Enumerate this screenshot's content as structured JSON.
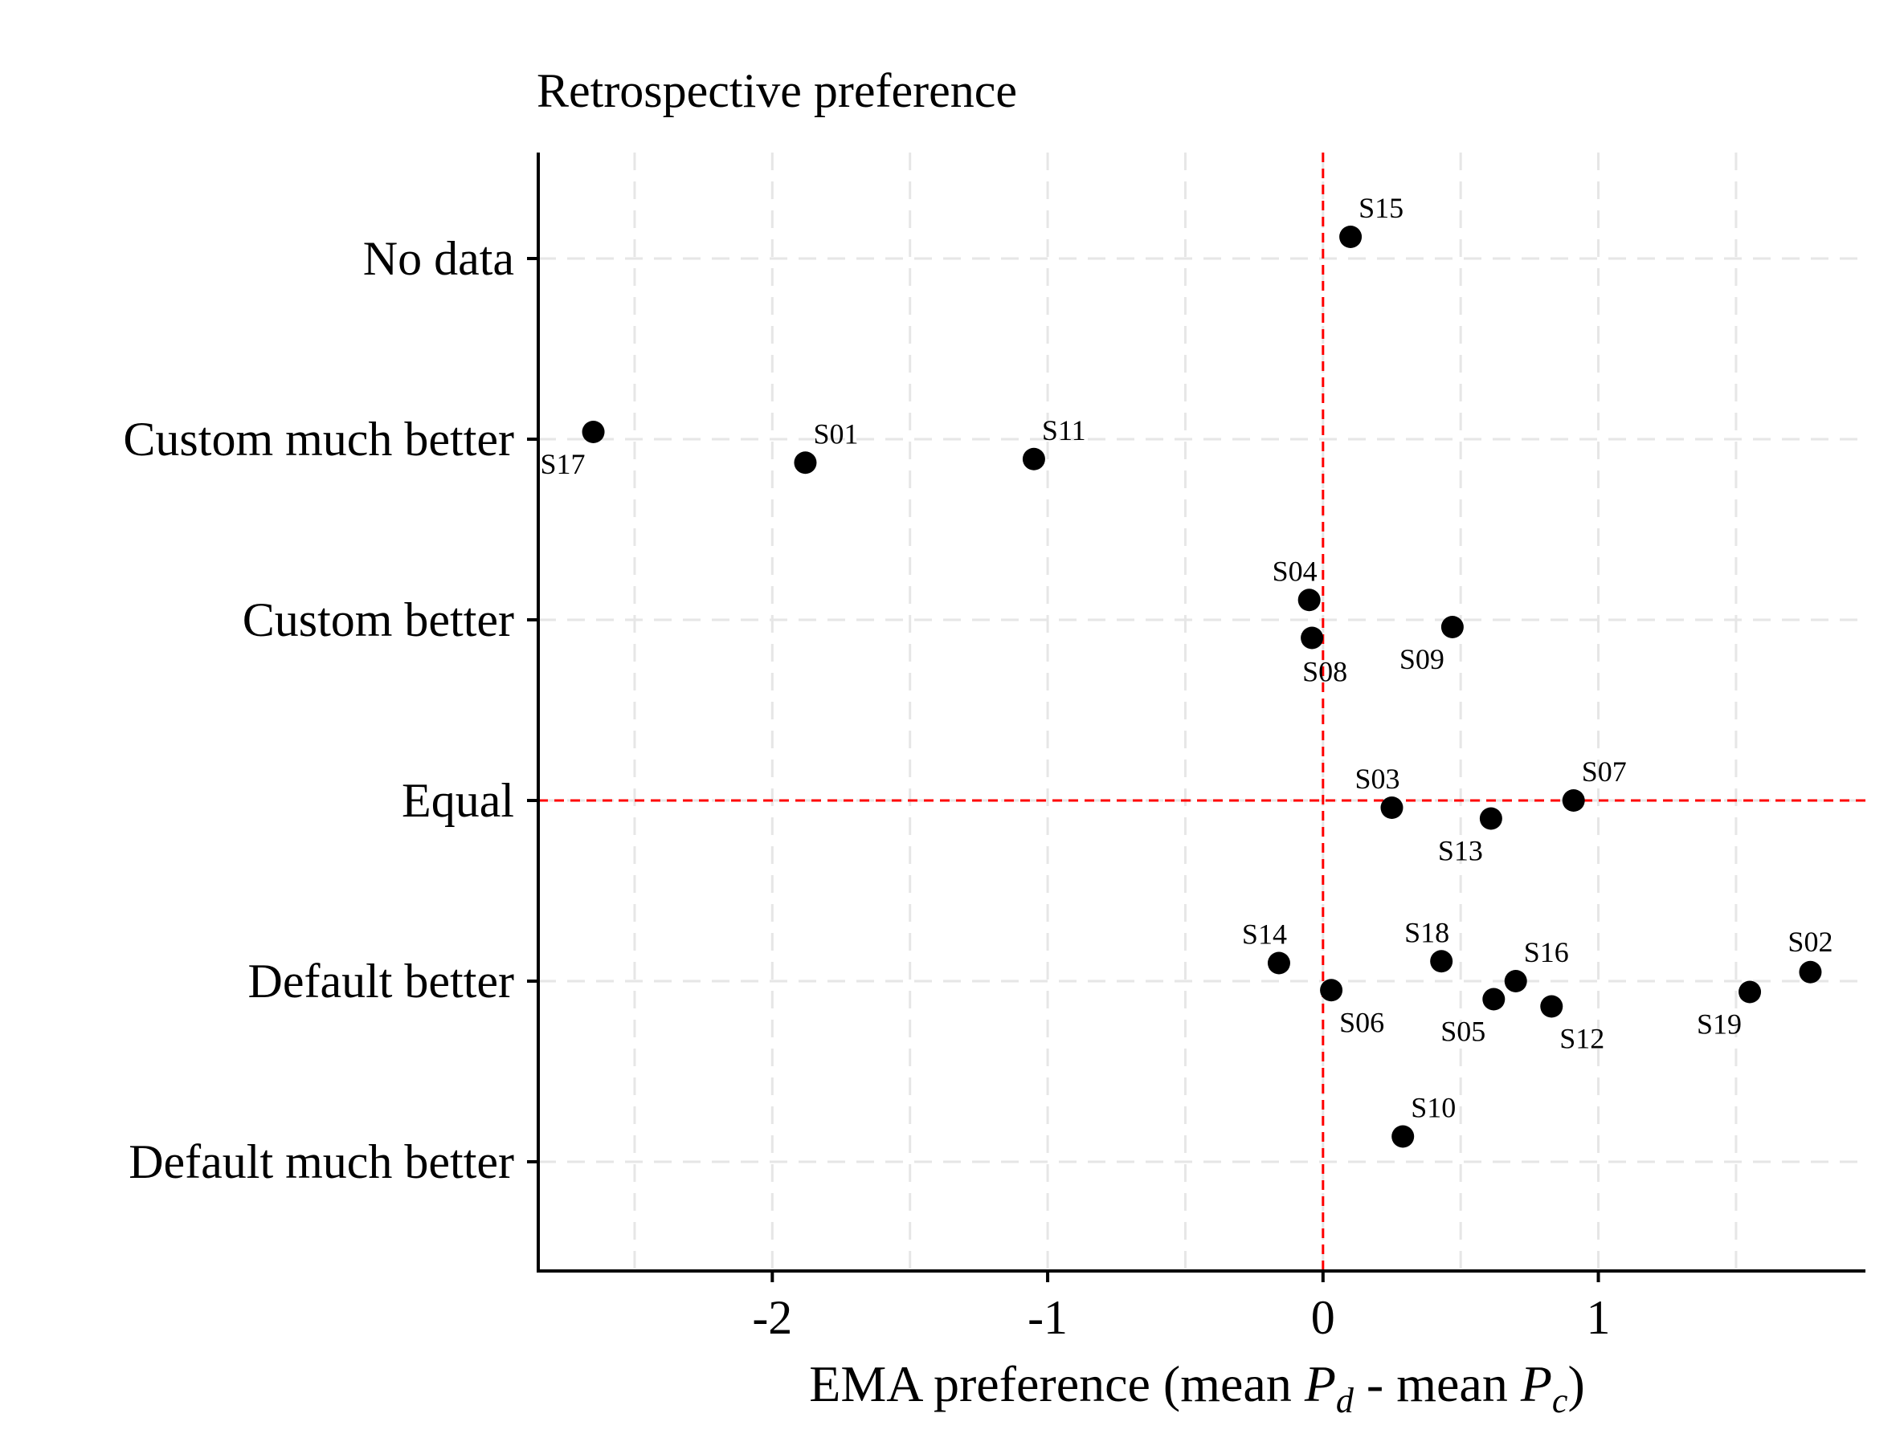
{
  "chart_data": {
    "type": "scatter",
    "title": "Retrospective preference",
    "xlabel": {
      "prefix": "EMA preference (mean ",
      "p1": "P",
      "p1_sub": "d",
      "middle": " - mean ",
      "p2": "P",
      "p2_sub": "c",
      "suffix": ")"
    },
    "ylabel": "",
    "categories": [
      "Default much better",
      "Default better",
      "Equal",
      "Custom better",
      "Custom much better",
      "No data"
    ],
    "xlim": [
      -2.85,
      1.97
    ],
    "x_ticks": [
      -2,
      -1,
      0,
      1
    ],
    "x_tick_labels": [
      "-2",
      "-1",
      "0",
      "1"
    ],
    "x_minor_ticks": [
      -2.5,
      -1.5,
      -0.5,
      0.5,
      1.5
    ],
    "grid": "dashed",
    "reference_lines": {
      "x": 0,
      "y": "Equal",
      "color": "#ff0000"
    },
    "points": [
      {
        "label": "S15",
        "x": 0.1,
        "y_offset": 0.12,
        "category": "No data",
        "label_pos": "above-right"
      },
      {
        "label": "S17",
        "x": -2.65,
        "y_offset": 0.04,
        "category": "Custom much better",
        "label_pos": "below-left"
      },
      {
        "label": "S01",
        "x": -1.88,
        "y_offset": -0.13,
        "category": "Custom much better",
        "label_pos": "above-right"
      },
      {
        "label": "S11",
        "x": -1.05,
        "y_offset": -0.11,
        "category": "Custom much better",
        "label_pos": "above-right"
      },
      {
        "label": "S04",
        "x": -0.05,
        "y_offset": 0.11,
        "category": "Custom better",
        "label_pos": "above-left"
      },
      {
        "label": "S08",
        "x": -0.04,
        "y_offset": -0.1,
        "category": "Custom better",
        "label_pos": "below"
      },
      {
        "label": "S09",
        "x": 0.47,
        "y_offset": -0.04,
        "category": "Custom better",
        "label_pos": "below-left"
      },
      {
        "label": "S03",
        "x": 0.25,
        "y_offset": -0.04,
        "category": "Equal",
        "label_pos": "above-left"
      },
      {
        "label": "S13",
        "x": 0.61,
        "y_offset": -0.1,
        "category": "Equal",
        "label_pos": "below-left"
      },
      {
        "label": "S07",
        "x": 0.91,
        "y_offset": 0.0,
        "category": "Equal",
        "label_pos": "above-right"
      },
      {
        "label": "S14",
        "x": -0.16,
        "y_offset": 0.1,
        "category": "Default better",
        "label_pos": "above-left"
      },
      {
        "label": "S06",
        "x": 0.03,
        "y_offset": -0.05,
        "category": "Default better",
        "label_pos": "below-right"
      },
      {
        "label": "S18",
        "x": 0.43,
        "y_offset": 0.11,
        "category": "Default better",
        "label_pos": "above-left"
      },
      {
        "label": "S05",
        "x": 0.62,
        "y_offset": -0.1,
        "category": "Default better",
        "label_pos": "below-left"
      },
      {
        "label": "S16",
        "x": 0.7,
        "y_offset": 0.0,
        "category": "Default better",
        "label_pos": "above-right"
      },
      {
        "label": "S12",
        "x": 0.83,
        "y_offset": -0.14,
        "category": "Default better",
        "label_pos": "below-right"
      },
      {
        "label": "S19",
        "x": 1.55,
        "y_offset": -0.06,
        "category": "Default better",
        "label_pos": "below-left"
      },
      {
        "label": "S02",
        "x": 1.77,
        "y_offset": 0.05,
        "category": "Default better",
        "label_pos": "above"
      },
      {
        "label": "S10",
        "x": 0.29,
        "y_offset": 0.14,
        "category": "Default much better",
        "label_pos": "above-right"
      }
    ]
  }
}
